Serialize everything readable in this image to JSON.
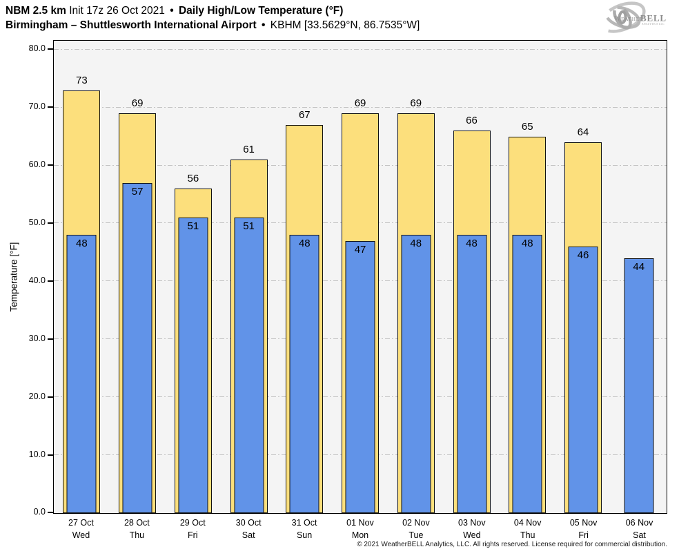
{
  "header": {
    "model": "NBM 2.5 km",
    "init": "Init 17z 26 Oct 2021",
    "separator": "•",
    "product": "Daily High/Low Temperature (°F)",
    "location": "Birmingham – Shuttlesworth International Airport",
    "station": "KBHM [33.5629°N, 86.7535°W]"
  },
  "logo": {
    "brand_weather": "Weather",
    "brand_bell": "BELL",
    "brand_sub": "Analytics LLC"
  },
  "footer": {
    "copyright": "© 2021 WeatherBELL Analytics, LLC. All rights reserved. License required for commercial distribution."
  },
  "chart_data": {
    "type": "bar",
    "title": "Daily High/Low Temperature (°F)",
    "subtitle": "NBM 2.5 km forecast for KBHM, initialized 17z 26 Oct 2021",
    "xlabel": "",
    "ylabel": "Temperature [°F]",
    "ylim": [
      0,
      80
    ],
    "y_ticks": [
      0,
      10,
      20,
      30,
      40,
      50,
      60,
      70,
      80
    ],
    "y_tick_labels": [
      "0.0",
      "10.0",
      "20.0",
      "30.0",
      "40.0",
      "50.0",
      "60.0",
      "70.0",
      "80.0"
    ],
    "grid": "horizontal dash-dot",
    "legend": "none",
    "categories": [
      {
        "date": "27 Oct",
        "weekday": "Wed"
      },
      {
        "date": "28 Oct",
        "weekday": "Thu"
      },
      {
        "date": "29 Oct",
        "weekday": "Fri"
      },
      {
        "date": "30 Oct",
        "weekday": "Sat"
      },
      {
        "date": "31 Oct",
        "weekday": "Sun"
      },
      {
        "date": "01 Nov",
        "weekday": "Mon"
      },
      {
        "date": "02 Nov",
        "weekday": "Tue"
      },
      {
        "date": "03 Nov",
        "weekday": "Wed"
      },
      {
        "date": "04 Nov",
        "weekday": "Thu"
      },
      {
        "date": "05 Nov",
        "weekday": "Fri"
      },
      {
        "date": "06 Nov",
        "weekday": "Sat"
      }
    ],
    "series": [
      {
        "name": "High",
        "color": "#FCDF7C",
        "values": [
          73,
          69,
          56,
          61,
          67,
          69,
          69,
          66,
          65,
          64,
          null
        ]
      },
      {
        "name": "Low",
        "color": "#6193E8",
        "values": [
          48,
          57,
          51,
          51,
          48,
          47,
          48,
          48,
          48,
          46,
          44
        ]
      }
    ],
    "colors": {
      "plot_background": "#F4F4F4",
      "gridline": "#C3C3C3",
      "bar_border": "#111111",
      "axis": "#000000"
    }
  }
}
